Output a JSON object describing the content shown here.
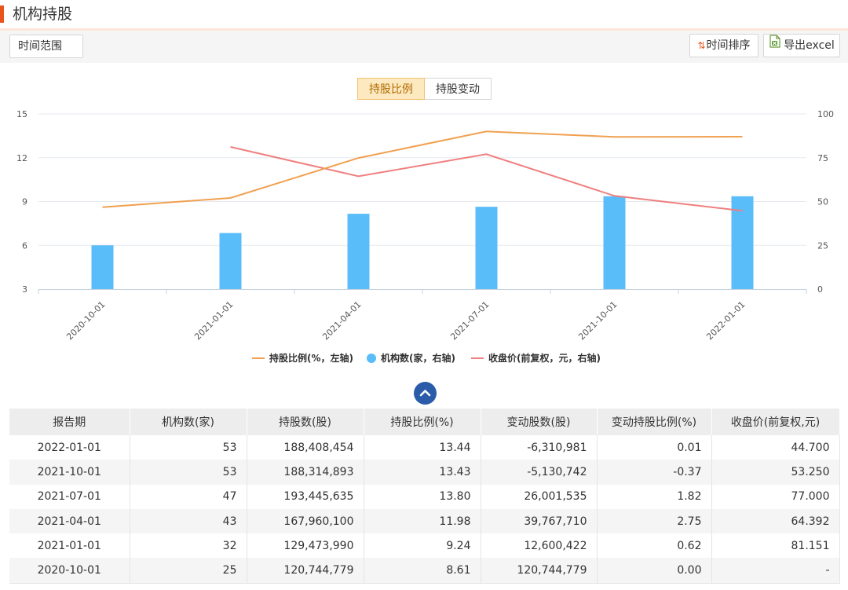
{
  "header": {
    "title": "机构持股"
  },
  "toolbar": {
    "time_range_label": "时间范围",
    "sort_label": "时间排序",
    "export_label": "导出excel"
  },
  "tabs": [
    {
      "label": "持股比例",
      "active": true
    },
    {
      "label": "持股变动",
      "active": false
    }
  ],
  "chart_data": {
    "type": "bar",
    "categories": [
      "2020-10-01",
      "2021-01-01",
      "2021-04-01",
      "2021-07-01",
      "2021-10-01",
      "2022-01-01"
    ],
    "left_axis": {
      "ylim": [
        3,
        15
      ],
      "ticks": [
        3,
        6,
        9,
        12,
        15
      ]
    },
    "right_axis": {
      "ylim": [
        0,
        100
      ],
      "ticks": [
        0,
        25,
        50,
        75,
        100
      ]
    },
    "series": [
      {
        "name": "持股比例(%，左轴)",
        "type": "line",
        "axis": "left",
        "color": "#f0a050",
        "values": [
          8.61,
          9.24,
          11.98,
          13.8,
          13.43,
          13.44
        ]
      },
      {
        "name": "机构数(家，右轴)",
        "type": "bar",
        "axis": "right",
        "color": "#58bdf8",
        "values": [
          25,
          32,
          43,
          47,
          53,
          53
        ]
      },
      {
        "name": "收盘价(前复权，元，右轴)",
        "type": "line",
        "axis": "right",
        "color": "#f07f7f",
        "values": [
          null,
          81.151,
          64.392,
          77.0,
          53.25,
          44.7
        ]
      }
    ],
    "legend_position": "bottom",
    "grid": true
  },
  "table": {
    "headers": [
      "报告期",
      "机构数(家)",
      "持股数(股)",
      "持股比例(%)",
      "变动股数(股)",
      "变动持股比例(%)",
      "收盘价(前复权,元)"
    ],
    "rows": [
      [
        "2022-01-01",
        "53",
        "188,408,454",
        "13.44",
        "-6,310,981",
        "0.01",
        "44.700"
      ],
      [
        "2021-10-01",
        "53",
        "188,314,893",
        "13.43",
        "-5,130,742",
        "-0.37",
        "53.250"
      ],
      [
        "2021-07-01",
        "47",
        "193,445,635",
        "13.80",
        "26,001,535",
        "1.82",
        "77.000"
      ],
      [
        "2021-04-01",
        "43",
        "167,960,100",
        "11.98",
        "39,767,710",
        "2.75",
        "64.392"
      ],
      [
        "2021-01-01",
        "32",
        "129,473,990",
        "9.24",
        "12,600,422",
        "0.62",
        "81.151"
      ],
      [
        "2020-10-01",
        "25",
        "120,744,779",
        "8.61",
        "120,744,779",
        "0.00",
        "-"
      ]
    ]
  }
}
